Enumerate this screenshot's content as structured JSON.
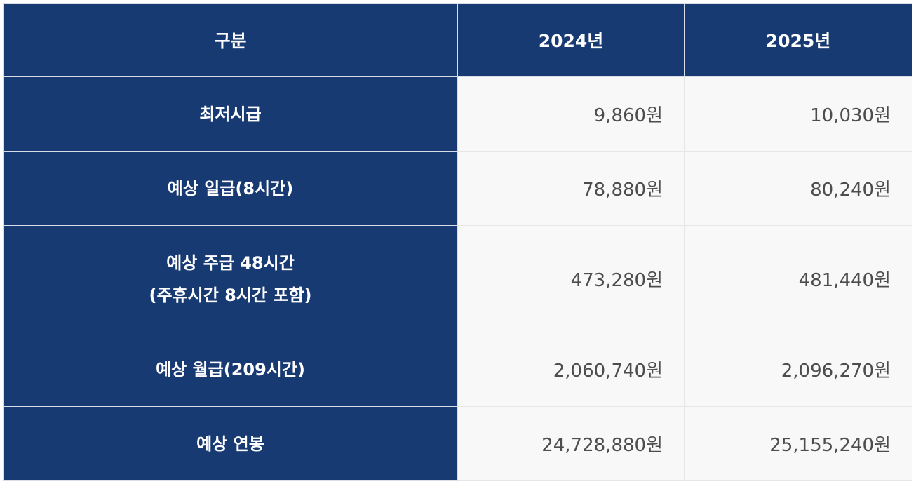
{
  "table": {
    "headers": [
      "구분",
      "2024년",
      "2025년"
    ],
    "rows": [
      {
        "label_lines": [
          "최저시급"
        ],
        "y2024": "9,860원",
        "y2025": "10,030원"
      },
      {
        "label_lines": [
          "예상 일급(8시간)"
        ],
        "y2024": "78,880원",
        "y2025": "80,240원"
      },
      {
        "label_lines": [
          "예상 주급 48시간",
          "(주휴시간 8시간 포함)"
        ],
        "y2024": "473,280원",
        "y2025": "481,440원"
      },
      {
        "label_lines": [
          "예상 월급(209시간)"
        ],
        "y2024": "2,060,740원",
        "y2025": "2,096,270원"
      },
      {
        "label_lines": [
          "예상 연봉"
        ],
        "y2024": "24,728,880원",
        "y2025": "25,155,240원"
      }
    ]
  },
  "colors": {
    "header_bg": "#183a73",
    "header_text": "#ffffff",
    "cell_bg": "#f8f8f8",
    "cell_text": "#4d4d4d"
  }
}
